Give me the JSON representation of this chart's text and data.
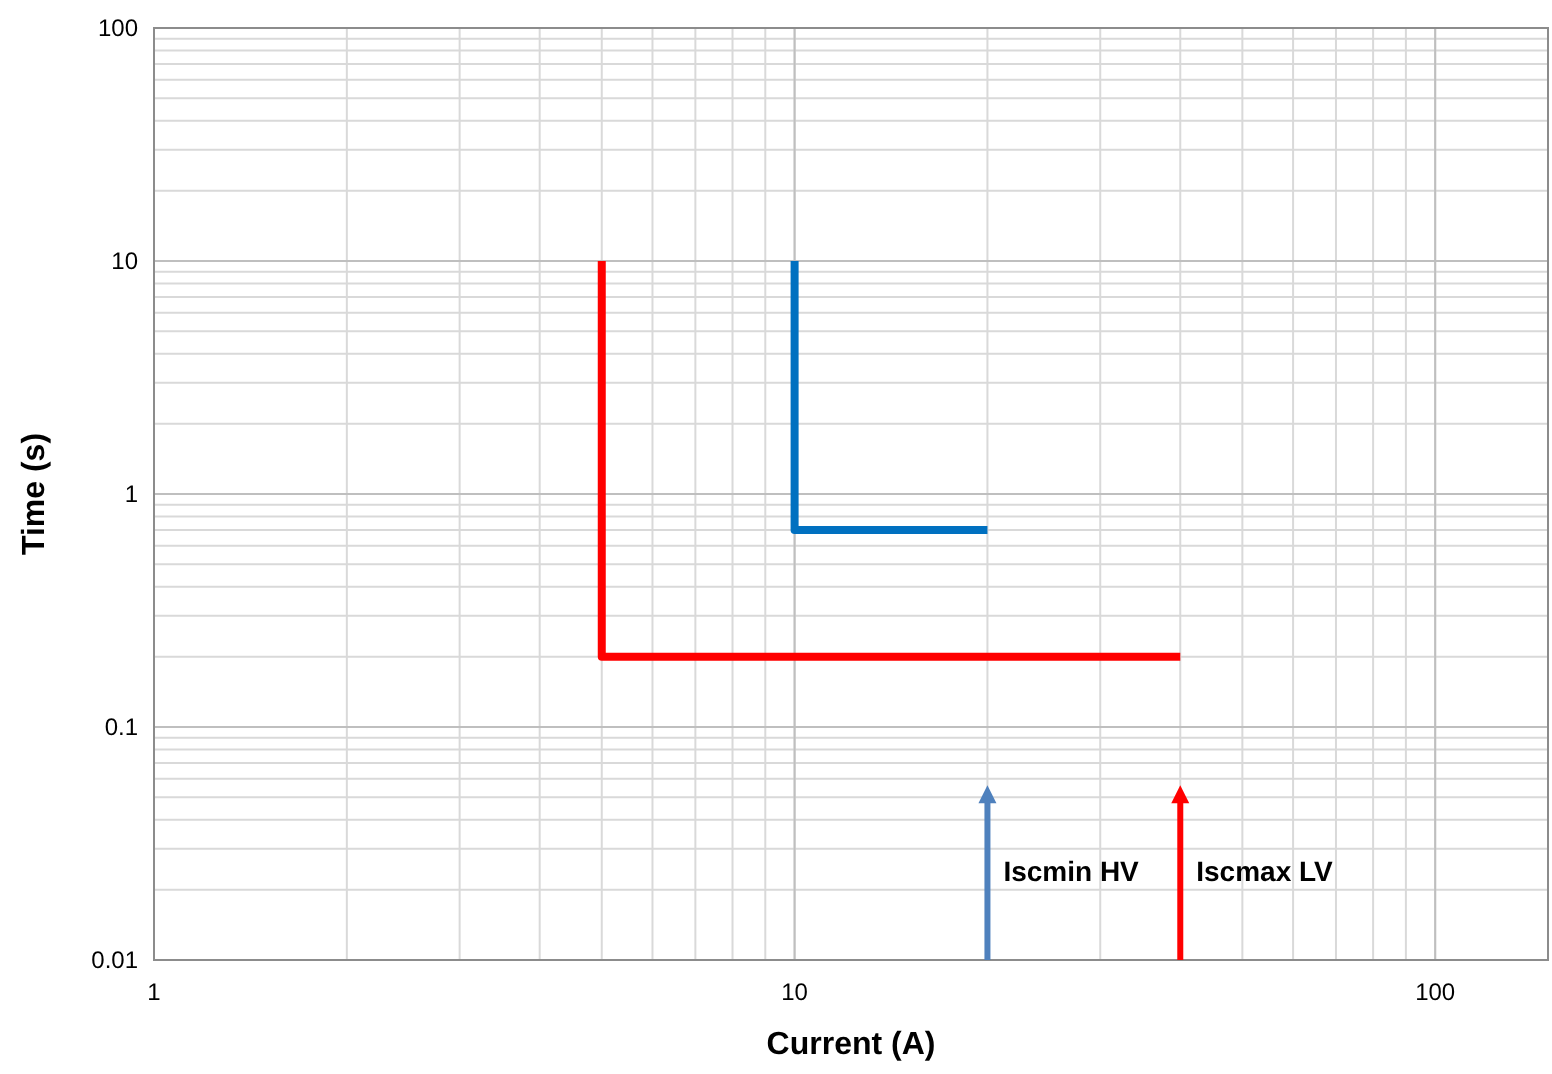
{
  "chart_data": {
    "type": "line",
    "xlabel": "Current (A)",
    "ylabel": "Time (s)",
    "log": "xy",
    "grid": true,
    "legend": false,
    "line_style": "solid",
    "xlim": [
      1,
      150
    ],
    "xticks": [
      1,
      10,
      100
    ],
    "ylim": [
      0.01,
      100
    ],
    "yticks": [
      0.01,
      0.1,
      1,
      10,
      100
    ],
    "series": [
      {
        "color": "#ff0000",
        "x": [
          5,
          5,
          40
        ],
        "values": [
          10,
          0.2,
          0.2
        ]
      },
      {
        "color": "#0070c0",
        "x": [
          10,
          10,
          20
        ],
        "values": [
          10,
          0.7,
          0.7
        ]
      },
      {
        "name": "Iscmin HV",
        "color": "#4f81bd",
        "x": [
          20,
          20
        ],
        "values": [
          0.01,
          0.05
        ]
      },
      {
        "name": "Iscmax LV",
        "color": "#ff0000",
        "x": [
          40,
          40
        ],
        "values": [
          0.01,
          0.05
        ]
      }
    ]
  }
}
